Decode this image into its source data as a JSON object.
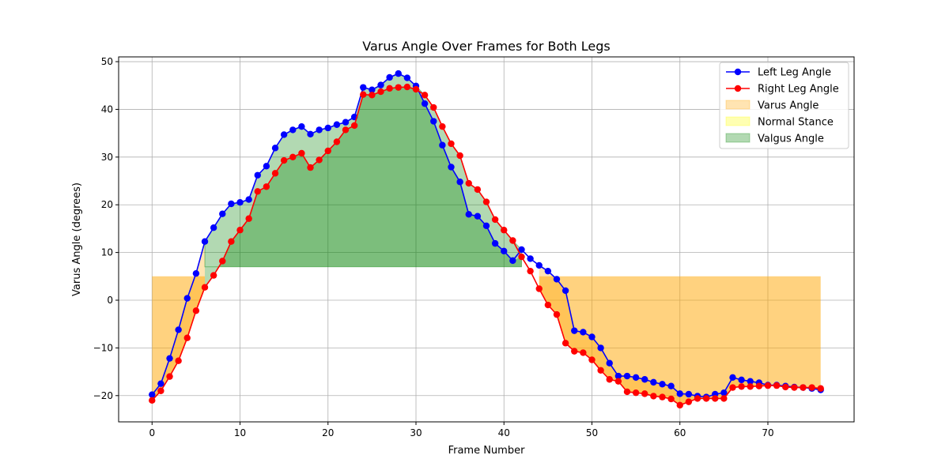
{
  "chart_data": {
    "type": "line",
    "title": "Varus Angle Over Frames for Both Legs",
    "xlabel": "Frame Number",
    "ylabel": "Varus Angle (degrees)",
    "xlim": [
      -3.8,
      79.8
    ],
    "ylim": [
      -25.5,
      51
    ],
    "xticks": [
      0,
      10,
      20,
      30,
      40,
      50,
      60,
      70
    ],
    "yticks": [
      -20,
      -10,
      0,
      10,
      20,
      30,
      40,
      50
    ],
    "grid": true,
    "legend_position": "top-right",
    "x": [
      0,
      1,
      2,
      3,
      4,
      5,
      6,
      7,
      8,
      9,
      10,
      11,
      12,
      13,
      14,
      15,
      16,
      17,
      18,
      19,
      20,
      21,
      22,
      23,
      24,
      25,
      26,
      27,
      28,
      29,
      30,
      31,
      32,
      33,
      34,
      35,
      36,
      37,
      38,
      39,
      40,
      41,
      42,
      43,
      44,
      45,
      46,
      47,
      48,
      49,
      50,
      51,
      52,
      53,
      54,
      55,
      56,
      57,
      58,
      59,
      60,
      61,
      62,
      63,
      64,
      65,
      66,
      67,
      68,
      69,
      70,
      71,
      72,
      73,
      74,
      75,
      76
    ],
    "series": [
      {
        "name": "Left Leg Angle",
        "color": "#0000ff",
        "values": [
          -19.8,
          -17.5,
          -12.2,
          -6.2,
          0.4,
          5.6,
          12.3,
          15.2,
          18.1,
          20.2,
          20.5,
          21.1,
          26.2,
          28.1,
          31.9,
          34.7,
          35.7,
          36.4,
          34.8,
          35.7,
          36.1,
          36.8,
          37.3,
          38.4,
          44.6,
          44.1,
          45.1,
          46.7,
          47.5,
          46.6,
          44.9,
          41.2,
          37.5,
          32.5,
          27.9,
          24.8,
          18.0,
          17.6,
          15.6,
          11.9,
          10.3,
          8.3,
          10.6,
          8.7,
          7.3,
          6.1,
          4.4,
          2.0,
          -6.4,
          -6.7,
          -7.7,
          -10.0,
          -13.2,
          -15.9,
          -15.9,
          -16.2,
          -16.6,
          -17.2,
          -17.6,
          -18.0,
          -19.6,
          -19.7,
          -20.1,
          -20.3,
          -19.7,
          -19.4,
          -16.2,
          -16.7,
          -17.0,
          -17.3,
          -17.8,
          -17.8,
          -18.0,
          -18.2,
          -18.3,
          -18.5,
          -18.8
        ]
      },
      {
        "name": "Right Leg Angle",
        "color": "#ff0000",
        "values": [
          -21.0,
          -19.0,
          -16.0,
          -12.7,
          -7.9,
          -2.2,
          2.7,
          5.2,
          8.2,
          12.3,
          14.7,
          17.1,
          22.8,
          23.8,
          26.6,
          29.3,
          30.0,
          30.8,
          27.8,
          29.4,
          31.3,
          33.2,
          35.7,
          36.6,
          43.1,
          43.0,
          43.7,
          44.4,
          44.6,
          44.7,
          44.2,
          43.0,
          40.4,
          36.4,
          32.8,
          30.3,
          24.5,
          23.2,
          20.6,
          16.9,
          14.7,
          12.5,
          9.1,
          6.1,
          2.4,
          -1.0,
          -3.0,
          -9.0,
          -10.7,
          -11.0,
          -12.5,
          -14.7,
          -16.6,
          -17.0,
          -19.2,
          -19.4,
          -19.6,
          -20.1,
          -20.3,
          -20.7,
          -22.0,
          -21.3,
          -20.6,
          -20.6,
          -20.6,
          -20.6,
          -18.3,
          -18.1,
          -18.1,
          -18.0,
          -17.9,
          -17.9,
          -18.2,
          -18.3,
          -18.3,
          -18.3,
          -18.5
        ]
      }
    ],
    "fills": [
      {
        "name": "Varus Angle",
        "color": "#ffa500",
        "opacity": 0.3
      },
      {
        "name": "Normal Stance",
        "color": "#ffff00",
        "opacity": 0.3
      },
      {
        "name": "Valgus Angle",
        "color": "#008000",
        "opacity": 0.3
      }
    ],
    "thresholds": {
      "varus_above": 5,
      "valgus_above": 7
    }
  }
}
